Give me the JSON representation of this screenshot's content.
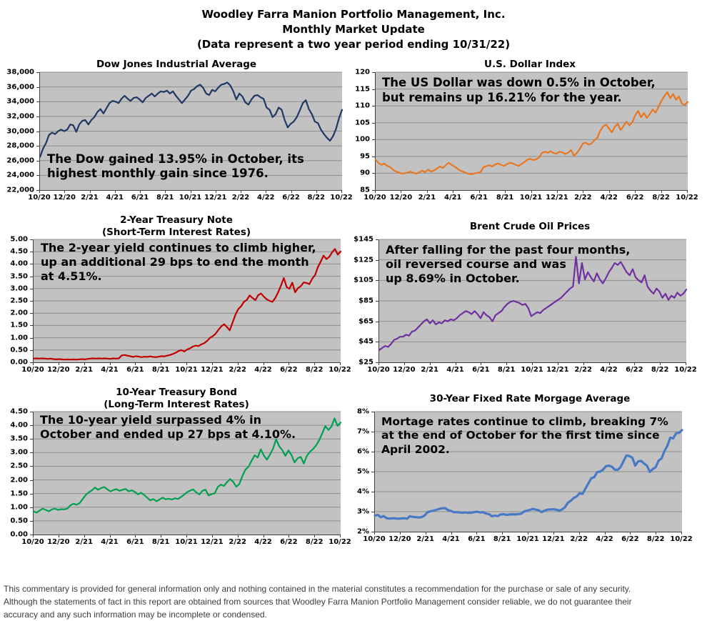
{
  "header": {
    "lines": [
      "Woodley Farra Manion Portfolio Management, Inc.",
      "Monthly Market Update",
      "(Data represent a two year period ending 10/31/22)"
    ]
  },
  "footer": {
    "lines": [
      "This commentary is provided for general information only and nothing contained in the material constitutes a recommendation for the purchase or sale of any security.",
      "Although the statements of fact in this report are obtained from sources that Woodley Farra Manion Portfolio Management consider reliable, we do not guarantee their",
      "accuracy and any such information may be incomplete or condensed."
    ]
  },
  "chart_data": [
    {
      "id": "dow-jones",
      "type": "line",
      "title": "Dow Jones Industrial Average",
      "title_lines": [
        "Dow Jones Industrial Average"
      ],
      "annotation_lines": [
        "The Dow gained 13.95% in October, its",
        "highest monthly gain since 1976."
      ],
      "color": "#1F3864",
      "line_width": 2.2,
      "y_ticks": [
        "38,000",
        "36,000",
        "34,000",
        "32,000",
        "30,000",
        "28,000",
        "26,000",
        "24,000",
        "22,000"
      ],
      "ylim": [
        22000,
        38000
      ],
      "x_ticks": [
        "10/20",
        "12/20",
        "2/21",
        "4/21",
        "6/21",
        "8/21",
        "10/21",
        "12/21",
        "2/22",
        "4/22",
        "6/22",
        "8/22",
        "10/22"
      ],
      "values": [
        26500,
        27600,
        28400,
        29500,
        29800,
        29600,
        30000,
        30200,
        30000,
        30200,
        30900,
        30800,
        29900,
        30900,
        31400,
        31500,
        30900,
        31500,
        31900,
        32600,
        33000,
        32400,
        33100,
        33800,
        34100,
        34000,
        33800,
        34400,
        34800,
        34400,
        34100,
        34500,
        34600,
        34300,
        33900,
        34500,
        34800,
        35100,
        34700,
        35100,
        35400,
        35300,
        35500,
        35100,
        35400,
        34800,
        34300,
        33800,
        34300,
        34800,
        35500,
        35700,
        36100,
        36300,
        35900,
        35100,
        34900,
        35600,
        35400,
        35900,
        36300,
        36400,
        36600,
        36200,
        35400,
        34300,
        35100,
        34700,
        33900,
        33600,
        34300,
        34800,
        34900,
        34600,
        34400,
        33200,
        32900,
        31900,
        32300,
        33200,
        32900,
        31500,
        30500,
        31000,
        31300,
        31900,
        32800,
        33800,
        34200,
        33000,
        32300,
        31300,
        31100,
        30200,
        29600,
        29100,
        28700,
        29300,
        30300,
        31800,
        32900
      ]
    },
    {
      "id": "us-dollar-index",
      "type": "line",
      "title": "U.S. Dollar Index",
      "title_lines": [
        "U.S. Dollar Index"
      ],
      "annotation_lines": [
        "The US Dollar was down 0.5% in October,",
        "but remains up 16.21% for the year."
      ],
      "color": "#E87722",
      "line_width": 2.2,
      "y_ticks": [
        "120",
        "115",
        "110",
        "105",
        "100",
        "95",
        "90",
        "85"
      ],
      "ylim": [
        85,
        120
      ],
      "x_ticks": [
        "10/20",
        "12/20",
        "2/21",
        "4/21",
        "6/21",
        "8/21",
        "10/21",
        "12/21",
        "2/22",
        "4/22",
        "6/22",
        "8/22",
        "10/22"
      ],
      "values": [
        94.0,
        93.0,
        92.5,
        92.9,
        92.2,
        91.8,
        91.0,
        90.5,
        90.2,
        89.9,
        90.0,
        90.2,
        90.5,
        90.1,
        89.9,
        90.3,
        90.8,
        90.3,
        91.1,
        90.5,
        90.8,
        91.4,
        92.0,
        91.6,
        92.3,
        93.1,
        92.5,
        92.0,
        91.4,
        90.8,
        90.5,
        90.1,
        89.8,
        89.7,
        90.0,
        90.1,
        90.4,
        91.8,
        92.1,
        92.4,
        92.0,
        92.6,
        92.9,
        92.5,
        92.2,
        92.7,
        93.1,
        92.9,
        92.5,
        92.2,
        92.7,
        93.3,
        94.0,
        94.3,
        93.9,
        94.1,
        94.6,
        96.0,
        96.4,
        96.1,
        96.5,
        96.0,
        95.8,
        96.4,
        96.2,
        95.7,
        96.1,
        96.9,
        95.2,
        96.0,
        97.2,
        98.8,
        99.1,
        98.5,
        98.8,
        99.8,
        100.5,
        102.6,
        103.9,
        104.5,
        103.3,
        102.1,
        103.8,
        104.7,
        102.8,
        104.0,
        105.3,
        104.2,
        105.1,
        107.2,
        108.5,
        106.6,
        107.9,
        106.4,
        107.6,
        108.9,
        108.0,
        109.8,
        111.5,
        112.9,
        114.1,
        112.3,
        113.5,
        111.8,
        112.8,
        110.7,
        110.2,
        111.2
      ]
    },
    {
      "id": "2-year-treasury-note",
      "type": "line",
      "title": "2-Year Treasury Note (Short-Term Interest Rates)",
      "title_lines": [
        "2-Year Treasury Note",
        "(Short-Term Interest Rates)"
      ],
      "annotation_lines": [
        "The 2-year yield continues to climb higher,",
        "up an additional 29 bps to end the month",
        "at 4.51%."
      ],
      "color": "#C00000",
      "line_width": 2.2,
      "y_ticks": [
        "5.00",
        "4.50",
        "4.00",
        "3.50",
        "3.00",
        "2.50",
        "2.00",
        "1.50",
        "1.00",
        "0.50",
        "0.00"
      ],
      "ylim": [
        0,
        5
      ],
      "x_ticks": [
        "10/20",
        "12/20",
        "2/21",
        "4/21",
        "6/21",
        "8/21",
        "10/21",
        "12/21",
        "2/22",
        "4/22",
        "6/22",
        "8/22",
        "10/22"
      ],
      "values": [
        0.15,
        0.16,
        0.15,
        0.16,
        0.15,
        0.14,
        0.15,
        0.13,
        0.12,
        0.13,
        0.12,
        0.11,
        0.12,
        0.11,
        0.12,
        0.11,
        0.12,
        0.13,
        0.12,
        0.14,
        0.15,
        0.16,
        0.15,
        0.16,
        0.15,
        0.16,
        0.15,
        0.14,
        0.16,
        0.15,
        0.16,
        0.28,
        0.3,
        0.27,
        0.25,
        0.22,
        0.25,
        0.23,
        0.21,
        0.23,
        0.22,
        0.24,
        0.22,
        0.21,
        0.23,
        0.25,
        0.24,
        0.27,
        0.3,
        0.34,
        0.39,
        0.46,
        0.5,
        0.44,
        0.52,
        0.57,
        0.64,
        0.68,
        0.66,
        0.73,
        0.78,
        0.87,
        0.99,
        1.06,
        1.16,
        1.32,
        1.46,
        1.55,
        1.44,
        1.3,
        1.62,
        1.94,
        2.17,
        2.28,
        2.46,
        2.54,
        2.72,
        2.62,
        2.53,
        2.73,
        2.8,
        2.67,
        2.56,
        2.5,
        2.46,
        2.61,
        2.84,
        3.12,
        3.43,
        3.06,
        2.99,
        3.24,
        2.85,
        3.02,
        3.1,
        3.25,
        3.23,
        3.18,
        3.4,
        3.55,
        3.87,
        4.1,
        4.34,
        4.2,
        4.29,
        4.48,
        4.61,
        4.38,
        4.51
      ]
    },
    {
      "id": "brent-crude-oil",
      "type": "line",
      "title": "Brent Crude Oil Prices",
      "title_lines": [
        "Brent Crude Oil Prices"
      ],
      "annotation_lines": [
        "After falling for the past four months,",
        "oil reversed course and was",
        "up 8.69% in October."
      ],
      "color": "#7030A0",
      "line_width": 2.2,
      "y_ticks": [
        "$145",
        "$125",
        "$105",
        "$85",
        "$65",
        "$45",
        "$25"
      ],
      "ylim": [
        25,
        145
      ],
      "x_ticks": [
        "10/20",
        "12/20",
        "2/21",
        "4/21",
        "6/21",
        "8/21",
        "10/21",
        "12/21",
        "2/22",
        "4/22",
        "6/22",
        "8/22",
        "10/22"
      ],
      "values": [
        37,
        39,
        41,
        40,
        43,
        47,
        48,
        50,
        50,
        52,
        51,
        55,
        56,
        59,
        62,
        65,
        67,
        63,
        66,
        62,
        64,
        63,
        66,
        65,
        67,
        66,
        68,
        71,
        73,
        75,
        74,
        72,
        75,
        72,
        68,
        74,
        71,
        69,
        65,
        71,
        73,
        75,
        79,
        82,
        84,
        85,
        84,
        83,
        81,
        82,
        78,
        70,
        72,
        74,
        73,
        76,
        78,
        80,
        82,
        84,
        86,
        88,
        91,
        94,
        97,
        99,
        128,
        102,
        122,
        106,
        113,
        108,
        104,
        112,
        106,
        102,
        107,
        113,
        117,
        122,
        120,
        123,
        118,
        113,
        110,
        116,
        108,
        105,
        103,
        110,
        99,
        95,
        92,
        97,
        94,
        88,
        92,
        86,
        90,
        88,
        93,
        90,
        92,
        96
      ]
    },
    {
      "id": "10-year-treasury-bond",
      "type": "line",
      "title": "10-Year Treasury Bond (Long-Term Interest Rates)",
      "title_lines": [
        "10-Year Treasury Bond",
        "(Long-Term Interest Rates)"
      ],
      "annotation_lines": [
        "The 10-year yield surpassed 4% in",
        "October and ended up 27 bps at 4.10%."
      ],
      "color": "#00A050",
      "line_width": 2.2,
      "y_ticks": [
        "4.50",
        "4.00",
        "3.50",
        "3.00",
        "2.50",
        "2.00",
        "1.50",
        "1.00",
        "0.50",
        "0.00"
      ],
      "ylim": [
        0,
        4.5
      ],
      "x_ticks": [
        "10/20",
        "12/20",
        "2/21",
        "4/21",
        "6/21",
        "8/21",
        "10/21",
        "12/21",
        "2/22",
        "4/22",
        "6/22",
        "8/22",
        "10/22"
      ],
      "values": [
        0.85,
        0.8,
        0.88,
        0.95,
        0.9,
        0.85,
        0.92,
        0.95,
        0.9,
        0.93,
        0.92,
        0.95,
        1.07,
        1.13,
        1.09,
        1.15,
        1.3,
        1.45,
        1.55,
        1.62,
        1.72,
        1.64,
        1.7,
        1.74,
        1.66,
        1.58,
        1.63,
        1.66,
        1.6,
        1.64,
        1.67,
        1.58,
        1.62,
        1.56,
        1.47,
        1.53,
        1.45,
        1.35,
        1.25,
        1.3,
        1.22,
        1.28,
        1.35,
        1.29,
        1.31,
        1.28,
        1.33,
        1.3,
        1.37,
        1.46,
        1.55,
        1.61,
        1.65,
        1.54,
        1.47,
        1.6,
        1.64,
        1.43,
        1.48,
        1.51,
        1.74,
        1.83,
        1.78,
        1.92,
        2.03,
        1.93,
        1.75,
        1.85,
        2.14,
        2.38,
        2.48,
        2.7,
        2.9,
        2.82,
        3.12,
        2.89,
        2.74,
        2.93,
        3.15,
        3.49,
        3.23,
        3.09,
        2.88,
        3.08,
        2.91,
        2.64,
        2.79,
        2.84,
        2.6,
        2.88,
        3.03,
        3.13,
        3.26,
        3.45,
        3.7,
        3.97,
        3.83,
        3.95,
        4.25,
        3.98,
        4.1
      ]
    },
    {
      "id": "30-year-mortgage",
      "type": "line",
      "title": "30-Year Fixed Rate Morgage Average",
      "title_lines": [
        "30-Year Fixed Rate Morgage Average"
      ],
      "annotation_lines": [
        "Mortage rates continue to climb, breaking 7%",
        "at the end of October for the first time since",
        "April 2002."
      ],
      "color": "#4779C4",
      "line_width": 3.2,
      "y_ticks": [
        "8%",
        "7%",
        "6%",
        "5%",
        "4%",
        "3%",
        "2%"
      ],
      "ylim": [
        2,
        8
      ],
      "x_ticks": [
        "10/20",
        "12/20",
        "2/21",
        "4/21",
        "6/21",
        "8/21",
        "10/21",
        "12/21",
        "2/22",
        "4/22",
        "6/22",
        "8/22",
        "10/22"
      ],
      "values": [
        2.8,
        2.84,
        2.72,
        2.78,
        2.67,
        2.65,
        2.67,
        2.66,
        2.65,
        2.66,
        2.67,
        2.65,
        2.77,
        2.74,
        2.73,
        2.71,
        2.73,
        2.81,
        2.97,
        3.02,
        3.05,
        3.09,
        3.14,
        3.17,
        3.18,
        3.08,
        3.04,
        2.97,
        2.98,
        2.96,
        2.95,
        2.96,
        2.94,
        2.95,
        2.98,
        3.0,
        2.96,
        2.98,
        2.9,
        2.88,
        2.77,
        2.8,
        2.78,
        2.86,
        2.87,
        2.84,
        2.86,
        2.87,
        2.86,
        2.88,
        2.9,
        3.01,
        3.05,
        3.09,
        3.14,
        3.1,
        3.07,
        2.98,
        3.05,
        3.1,
        3.11,
        3.12,
        3.1,
        3.05,
        3.11,
        3.22,
        3.45,
        3.55,
        3.69,
        3.76,
        3.92,
        3.89,
        4.16,
        4.42,
        4.67,
        4.72,
        4.98,
        5.0,
        5.1,
        5.27,
        5.3,
        5.25,
        5.1,
        5.09,
        5.23,
        5.52,
        5.81,
        5.78,
        5.7,
        5.3,
        5.51,
        5.54,
        5.41,
        5.3,
        4.99,
        5.13,
        5.22,
        5.55,
        5.66,
        6.02,
        6.29,
        6.7,
        6.66,
        6.92,
        6.94,
        7.08
      ]
    }
  ]
}
